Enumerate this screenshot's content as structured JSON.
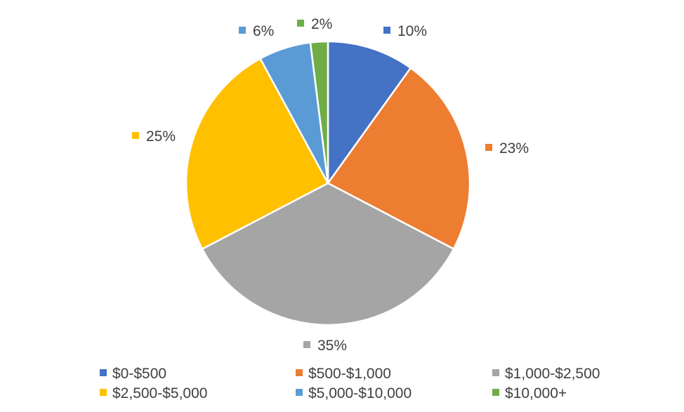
{
  "chart_data": {
    "type": "pie",
    "title": "",
    "slices": [
      {
        "label": "$0-$500",
        "value": 10,
        "display": "10%",
        "color": "#4472C4"
      },
      {
        "label": "$500-$1,000",
        "value": 23,
        "display": "23%",
        "color": "#ED7D31"
      },
      {
        "label": "$1,000-$2,500",
        "value": 35,
        "display": "35%",
        "color": "#A5A5A5"
      },
      {
        "label": "$2,500-$5,000",
        "value": 25,
        "display": "25%",
        "color": "#FFC000"
      },
      {
        "label": "$5,000-$10,000",
        "value": 6,
        "display": "6%",
        "color": "#5B9BD5"
      },
      {
        "label": "$10,000+",
        "value": 2,
        "display": "2%",
        "color": "#70AD47"
      }
    ],
    "legend_position": "bottom"
  }
}
